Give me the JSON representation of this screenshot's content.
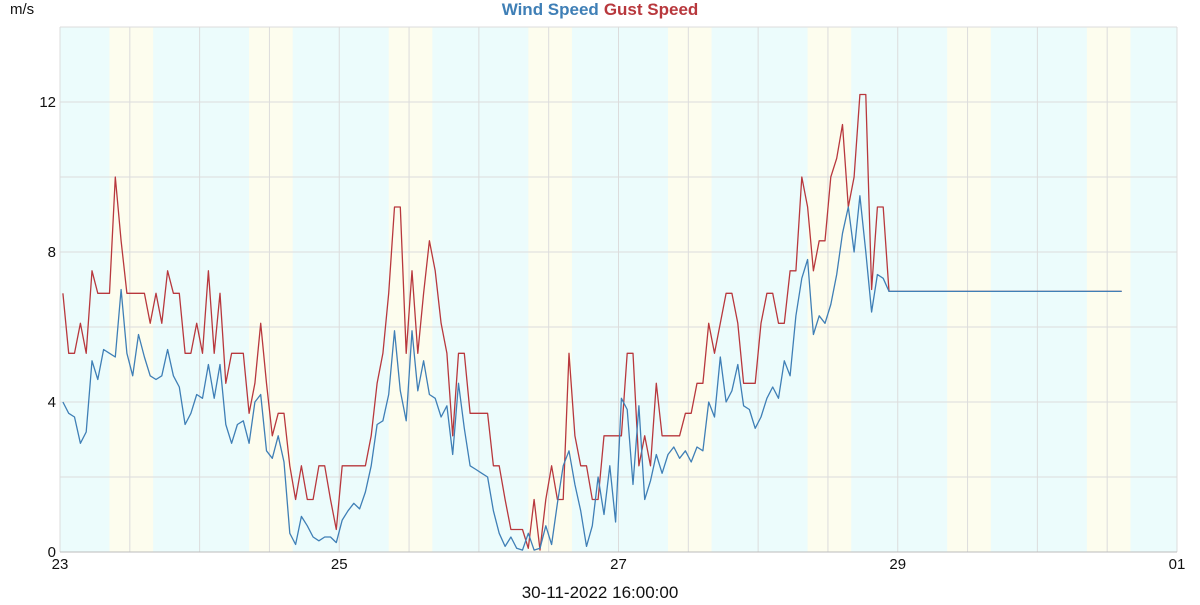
{
  "colors": {
    "wind": "#3f7fb6",
    "gust": "#b8383d",
    "night_band": "#ecfcfc",
    "day_band": "#fdfdee",
    "grid": "#dcdcdc"
  },
  "footer_timestamp": "30-11-2022 16:00:00",
  "chart_data": {
    "type": "line",
    "title_parts": [
      "Wind Speed",
      "Gust Speed"
    ],
    "ylabel": "m/s",
    "x_unit": "hours since 23 00:00",
    "xlim": [
      0,
      192
    ],
    "ylim": [
      0,
      14
    ],
    "y_ticks": [
      0,
      4,
      8,
      12
    ],
    "x_ticks": [
      {
        "x": 0,
        "label": "23"
      },
      {
        "x": 48,
        "label": "25"
      },
      {
        "x": 96,
        "label": "27"
      },
      {
        "x": 144,
        "label": "29"
      },
      {
        "x": 192,
        "label": "01"
      }
    ],
    "grid": true,
    "day_bands": [
      [
        8.5,
        16
      ],
      [
        32.5,
        40
      ],
      [
        56.5,
        64
      ],
      [
        80.5,
        88
      ],
      [
        104.5,
        112
      ],
      [
        128.5,
        136
      ],
      [
        152.5,
        160
      ],
      [
        176.5,
        184
      ]
    ],
    "series": [
      {
        "name": "Wind Speed",
        "color": "#3f7fb6",
        "points": [
          [
            0.5,
            4.0
          ],
          [
            1.5,
            3.7
          ],
          [
            2.5,
            3.6
          ],
          [
            3.5,
            2.9
          ],
          [
            4.5,
            3.2
          ],
          [
            5.5,
            5.1
          ],
          [
            6.5,
            4.6
          ],
          [
            7.5,
            5.4
          ],
          [
            8.5,
            5.3
          ],
          [
            9.5,
            5.2
          ],
          [
            10.5,
            7.0
          ],
          [
            11.5,
            5.3
          ],
          [
            12.5,
            4.7
          ],
          [
            13.5,
            5.8
          ],
          [
            14.5,
            5.2
          ],
          [
            15.5,
            4.7
          ],
          [
            16.5,
            4.6
          ],
          [
            17.5,
            4.7
          ],
          [
            18.5,
            5.4
          ],
          [
            19.5,
            4.7
          ],
          [
            20.5,
            4.4
          ],
          [
            21.5,
            3.4
          ],
          [
            22.5,
            3.7
          ],
          [
            23.5,
            4.2
          ],
          [
            24.5,
            4.1
          ],
          [
            25.5,
            5.0
          ],
          [
            26.5,
            4.1
          ],
          [
            27.5,
            5.0
          ],
          [
            28.5,
            3.4
          ],
          [
            29.5,
            2.9
          ],
          [
            30.5,
            3.4
          ],
          [
            31.5,
            3.5
          ],
          [
            32.5,
            2.9
          ],
          [
            33.5,
            4.0
          ],
          [
            34.5,
            4.2
          ],
          [
            35.5,
            2.7
          ],
          [
            36.5,
            2.5
          ],
          [
            37.5,
            3.1
          ],
          [
            38.5,
            2.4
          ],
          [
            39.5,
            0.5
          ],
          [
            40.5,
            0.2
          ],
          [
            41.5,
            0.95
          ],
          [
            42.5,
            0.7
          ],
          [
            43.5,
            0.4
          ],
          [
            44.5,
            0.3
          ],
          [
            45.5,
            0.4
          ],
          [
            46.5,
            0.4
          ],
          [
            47.5,
            0.25
          ],
          [
            48.5,
            0.85
          ],
          [
            49.5,
            1.1
          ],
          [
            50.5,
            1.3
          ],
          [
            51.5,
            1.15
          ],
          [
            52.5,
            1.6
          ],
          [
            53.5,
            2.3
          ],
          [
            54.5,
            3.4
          ],
          [
            55.5,
            3.5
          ],
          [
            56.5,
            4.2
          ],
          [
            57.5,
            5.9
          ],
          [
            58.5,
            4.3
          ],
          [
            59.5,
            3.5
          ],
          [
            60.5,
            5.9
          ],
          [
            61.5,
            4.3
          ],
          [
            62.5,
            5.1
          ],
          [
            63.5,
            4.2
          ],
          [
            64.5,
            4.1
          ],
          [
            65.5,
            3.6
          ],
          [
            66.5,
            3.9
          ],
          [
            67.5,
            2.6
          ],
          [
            68.5,
            4.5
          ],
          [
            69.5,
            3.3
          ],
          [
            70.5,
            2.3
          ],
          [
            71.5,
            2.2
          ],
          [
            72.5,
            2.1
          ],
          [
            73.5,
            2.0
          ],
          [
            74.5,
            1.1
          ],
          [
            75.5,
            0.5
          ],
          [
            76.5,
            0.15
          ],
          [
            77.5,
            0.4
          ],
          [
            78.5,
            0.1
          ],
          [
            79.5,
            0.05
          ],
          [
            80.5,
            0.5
          ],
          [
            81.5,
            0.05
          ],
          [
            82.5,
            0.1
          ],
          [
            83.5,
            0.7
          ],
          [
            84.5,
            0.2
          ],
          [
            85.5,
            1.3
          ],
          [
            86.5,
            2.3
          ],
          [
            87.5,
            2.7
          ],
          [
            88.5,
            1.8
          ],
          [
            89.5,
            1.1
          ],
          [
            90.5,
            0.15
          ],
          [
            91.5,
            0.7
          ],
          [
            92.5,
            2.0
          ],
          [
            93.5,
            1.0
          ],
          [
            94.5,
            2.3
          ],
          [
            95.5,
            0.8
          ],
          [
            96.5,
            4.1
          ],
          [
            97.5,
            3.8
          ],
          [
            98.5,
            1.8
          ],
          [
            99.5,
            3.9
          ],
          [
            100.5,
            1.4
          ],
          [
            101.5,
            1.9
          ],
          [
            102.5,
            2.6
          ],
          [
            103.5,
            2.1
          ],
          [
            104.5,
            2.6
          ],
          [
            105.5,
            2.8
          ],
          [
            106.5,
            2.5
          ],
          [
            107.5,
            2.7
          ],
          [
            108.5,
            2.4
          ],
          [
            109.5,
            2.8
          ],
          [
            110.5,
            2.7
          ],
          [
            111.5,
            4.0
          ],
          [
            112.5,
            3.6
          ],
          [
            113.5,
            5.2
          ],
          [
            114.5,
            4.0
          ],
          [
            115.5,
            4.3
          ],
          [
            116.5,
            5.0
          ],
          [
            117.5,
            3.9
          ],
          [
            118.5,
            3.8
          ],
          [
            119.5,
            3.3
          ],
          [
            120.5,
            3.6
          ],
          [
            121.5,
            4.1
          ],
          [
            122.5,
            4.4
          ],
          [
            123.5,
            4.1
          ],
          [
            124.5,
            5.1
          ],
          [
            125.5,
            4.7
          ],
          [
            126.5,
            6.3
          ],
          [
            127.5,
            7.3
          ],
          [
            128.5,
            7.8
          ],
          [
            129.5,
            5.8
          ],
          [
            130.5,
            6.3
          ],
          [
            131.5,
            6.1
          ],
          [
            132.5,
            6.6
          ],
          [
            133.5,
            7.4
          ],
          [
            134.5,
            8.5
          ],
          [
            135.5,
            9.2
          ],
          [
            136.5,
            8.0
          ],
          [
            137.5,
            9.5
          ],
          [
            138.5,
            8.0
          ],
          [
            139.5,
            6.4
          ],
          [
            140.5,
            7.4
          ],
          [
            141.5,
            7.3
          ],
          [
            142.5,
            6.95
          ],
          [
            150,
            6.95
          ],
          [
            165,
            6.95
          ],
          [
            182.5,
            6.95
          ]
        ]
      },
      {
        "name": "Gust Speed",
        "color": "#b8383d",
        "points": [
          [
            0.5,
            6.9
          ],
          [
            1.5,
            5.3
          ],
          [
            2.5,
            5.3
          ],
          [
            3.5,
            6.1
          ],
          [
            4.5,
            5.3
          ],
          [
            5.5,
            7.5
          ],
          [
            6.5,
            6.9
          ],
          [
            7.5,
            6.9
          ],
          [
            8.5,
            6.9
          ],
          [
            9.5,
            10.0
          ],
          [
            10.5,
            8.3
          ],
          [
            11.5,
            6.9
          ],
          [
            12.5,
            6.9
          ],
          [
            13.5,
            6.9
          ],
          [
            14.5,
            6.9
          ],
          [
            15.5,
            6.1
          ],
          [
            16.5,
            6.9
          ],
          [
            17.5,
            6.1
          ],
          [
            18.5,
            7.5
          ],
          [
            19.5,
            6.9
          ],
          [
            20.5,
            6.9
          ],
          [
            21.5,
            5.3
          ],
          [
            22.5,
            5.3
          ],
          [
            23.5,
            6.1
          ],
          [
            24.5,
            5.3
          ],
          [
            25.5,
            7.5
          ],
          [
            26.5,
            5.3
          ],
          [
            27.5,
            6.9
          ],
          [
            28.5,
            4.5
          ],
          [
            29.5,
            5.3
          ],
          [
            30.5,
            5.3
          ],
          [
            31.5,
            5.3
          ],
          [
            32.5,
            3.7
          ],
          [
            33.5,
            4.5
          ],
          [
            34.5,
            6.1
          ],
          [
            35.5,
            4.5
          ],
          [
            36.5,
            3.1
          ],
          [
            37.5,
            3.7
          ],
          [
            38.5,
            3.7
          ],
          [
            39.5,
            2.3
          ],
          [
            40.5,
            1.4
          ],
          [
            41.5,
            2.3
          ],
          [
            42.5,
            1.4
          ],
          [
            43.5,
            1.4
          ],
          [
            44.5,
            2.3
          ],
          [
            45.5,
            2.3
          ],
          [
            46.5,
            1.4
          ],
          [
            47.5,
            0.6
          ],
          [
            48.5,
            2.3
          ],
          [
            49.5,
            2.3
          ],
          [
            50.5,
            2.3
          ],
          [
            51.5,
            2.3
          ],
          [
            52.5,
            2.3
          ],
          [
            53.5,
            3.1
          ],
          [
            54.5,
            4.5
          ],
          [
            55.5,
            5.3
          ],
          [
            56.5,
            6.9
          ],
          [
            57.5,
            9.2
          ],
          [
            58.5,
            9.2
          ],
          [
            59.5,
            5.3
          ],
          [
            60.5,
            7.5
          ],
          [
            61.5,
            5.3
          ],
          [
            62.5,
            6.9
          ],
          [
            63.5,
            8.3
          ],
          [
            64.5,
            7.5
          ],
          [
            65.5,
            6.1
          ],
          [
            66.5,
            5.3
          ],
          [
            67.5,
            3.1
          ],
          [
            68.5,
            5.3
          ],
          [
            69.5,
            5.3
          ],
          [
            70.5,
            3.7
          ],
          [
            71.5,
            3.7
          ],
          [
            72.5,
            3.7
          ],
          [
            73.5,
            3.7
          ],
          [
            74.5,
            2.3
          ],
          [
            75.5,
            2.3
          ],
          [
            76.5,
            1.4
          ],
          [
            77.5,
            0.6
          ],
          [
            78.5,
            0.6
          ],
          [
            79.5,
            0.6
          ],
          [
            80.5,
            0.1
          ],
          [
            81.5,
            1.4
          ],
          [
            82.5,
            0.05
          ],
          [
            83.5,
            1.4
          ],
          [
            84.5,
            2.3
          ],
          [
            85.5,
            1.4
          ],
          [
            86.5,
            1.4
          ],
          [
            87.5,
            5.3
          ],
          [
            88.5,
            3.1
          ],
          [
            89.5,
            2.3
          ],
          [
            90.5,
            2.3
          ],
          [
            91.5,
            1.4
          ],
          [
            92.5,
            1.4
          ],
          [
            93.5,
            3.1
          ],
          [
            94.5,
            3.1
          ],
          [
            95.5,
            3.1
          ],
          [
            96.5,
            3.1
          ],
          [
            97.5,
            5.3
          ],
          [
            98.5,
            5.3
          ],
          [
            99.5,
            2.3
          ],
          [
            100.5,
            3.1
          ],
          [
            101.5,
            2.3
          ],
          [
            102.5,
            4.5
          ],
          [
            103.5,
            3.1
          ],
          [
            104.5,
            3.1
          ],
          [
            105.5,
            3.1
          ],
          [
            106.5,
            3.1
          ],
          [
            107.5,
            3.7
          ],
          [
            108.5,
            3.7
          ],
          [
            109.5,
            4.5
          ],
          [
            110.5,
            4.5
          ],
          [
            111.5,
            6.1
          ],
          [
            112.5,
            5.3
          ],
          [
            113.5,
            6.1
          ],
          [
            114.5,
            6.9
          ],
          [
            115.5,
            6.9
          ],
          [
            116.5,
            6.1
          ],
          [
            117.5,
            4.5
          ],
          [
            118.5,
            4.5
          ],
          [
            119.5,
            4.5
          ],
          [
            120.5,
            6.1
          ],
          [
            121.5,
            6.9
          ],
          [
            122.5,
            6.9
          ],
          [
            123.5,
            6.1
          ],
          [
            124.5,
            6.1
          ],
          [
            125.5,
            7.5
          ],
          [
            126.5,
            7.5
          ],
          [
            127.5,
            10.0
          ],
          [
            128.5,
            9.2
          ],
          [
            129.5,
            7.5
          ],
          [
            130.5,
            8.3
          ],
          [
            131.5,
            8.3
          ],
          [
            132.5,
            10.0
          ],
          [
            133.5,
            10.5
          ],
          [
            134.5,
            11.4
          ],
          [
            135.5,
            9.2
          ],
          [
            136.5,
            10.0
          ],
          [
            137.5,
            12.2
          ],
          [
            138.5,
            12.2
          ],
          [
            139.5,
            7.0
          ],
          [
            140.5,
            9.2
          ],
          [
            141.5,
            9.2
          ],
          [
            142.5,
            6.95
          ],
          [
            150,
            6.95
          ],
          [
            165,
            6.95
          ],
          [
            182.5,
            6.95
          ]
        ]
      }
    ]
  }
}
